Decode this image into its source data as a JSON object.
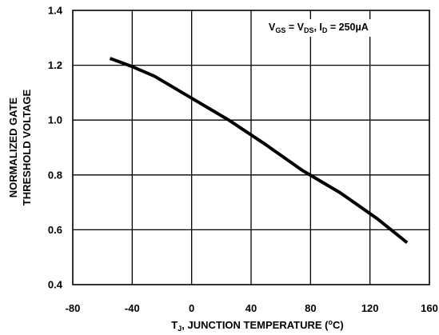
{
  "chart_data": {
    "type": "line",
    "xlabel": {
      "main": "T",
      "sub": "J",
      "rest": ", JUNCTION TEMPERATURE (",
      "sup": "o",
      "end": "C)"
    },
    "ylabel": [
      "NORMALIZED GATE",
      "THRESHOLD VOLTAGE"
    ],
    "xlim": [
      -80,
      160
    ],
    "ylim": [
      0.4,
      1.4
    ],
    "x_ticks": [
      -80,
      -40,
      0,
      40,
      80,
      120,
      160
    ],
    "x_tick_labels": [
      "-80",
      "-40",
      "0",
      "40",
      "80",
      "120",
      "160"
    ],
    "y_ticks": [
      0.4,
      0.6,
      0.8,
      1.0,
      1.2,
      1.4
    ],
    "y_tick_labels": [
      "0.4",
      "0.6",
      "0.8",
      "1.0",
      "1.2",
      "1.4"
    ],
    "grid": true,
    "annotation": {
      "parts": [
        {
          "t": "V",
          "style": "normal"
        },
        {
          "t": "GS",
          "style": "sub"
        },
        {
          "t": " = V",
          "style": "normal"
        },
        {
          "t": "DS",
          "style": "sub"
        },
        {
          "t": ", I",
          "style": "normal"
        },
        {
          "t": "D",
          "style": "sub"
        },
        {
          "t": " = 250µA",
          "style": "normal"
        }
      ],
      "position": "top-right"
    },
    "series": [
      {
        "x": [
          -55,
          -40,
          -25,
          0,
          25,
          50,
          75,
          100,
          125,
          145
        ],
        "y": [
          1.225,
          1.195,
          1.16,
          1.08,
          1.0,
          0.91,
          0.815,
          0.735,
          0.64,
          0.553
        ]
      }
    ]
  },
  "colors": {
    "line": "#000000",
    "grid": "#000000",
    "background": "#ffffff"
  }
}
